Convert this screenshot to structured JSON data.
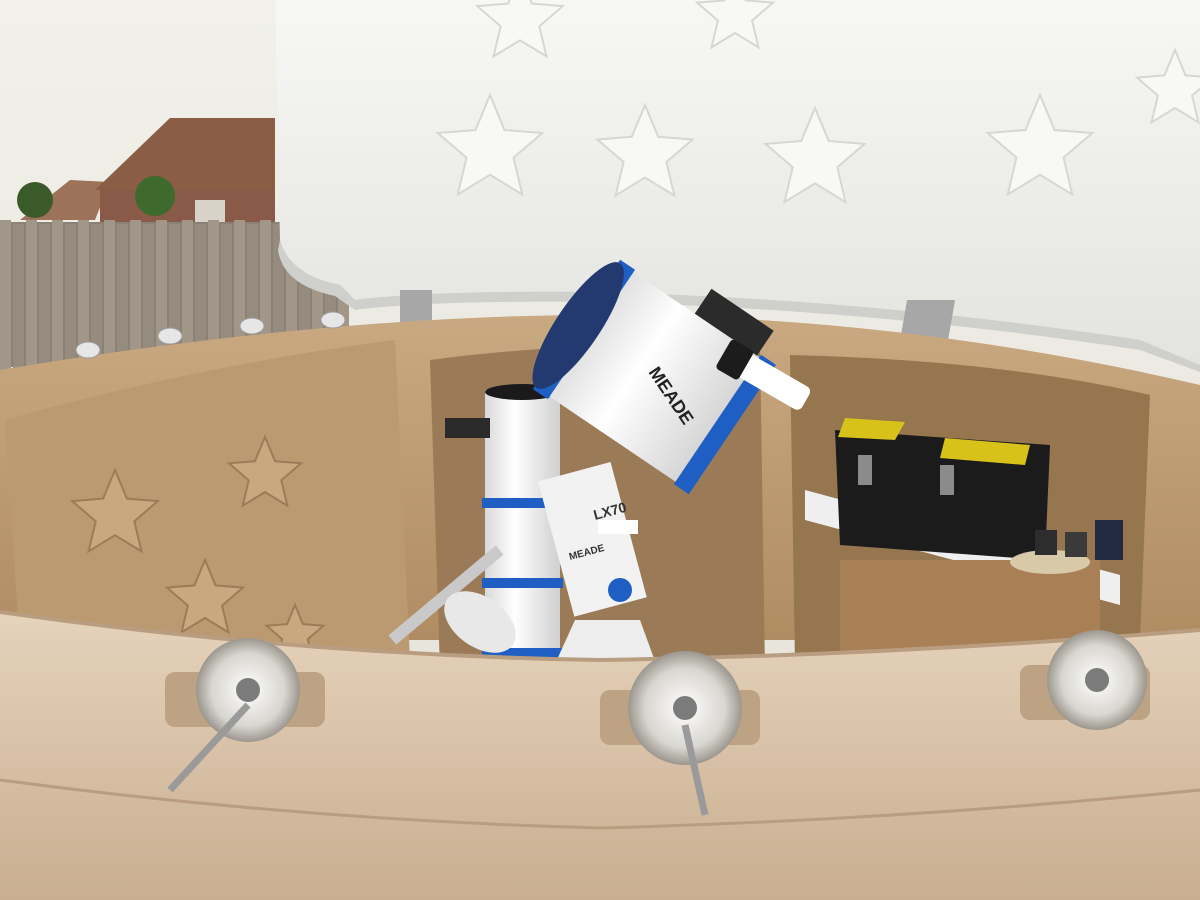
{
  "scene": {
    "subject": "backyard telescope observatory",
    "telescope_main": {
      "brand": "MEADE",
      "model_mark": "LX",
      "color_body": "#f4f4f4",
      "color_accent": "#1f5fc4"
    },
    "mount": {
      "brand": "MEADE",
      "model": "LX70"
    },
    "telescope_secondary": {
      "color_body": "#f2f2f2",
      "color_accent": "#1f5fc4"
    },
    "toolbox_color": "#d8c21a",
    "dome_color": "#eeeeea",
    "wall_color": "#c7a57f",
    "rim_color": "#d7bea0"
  }
}
